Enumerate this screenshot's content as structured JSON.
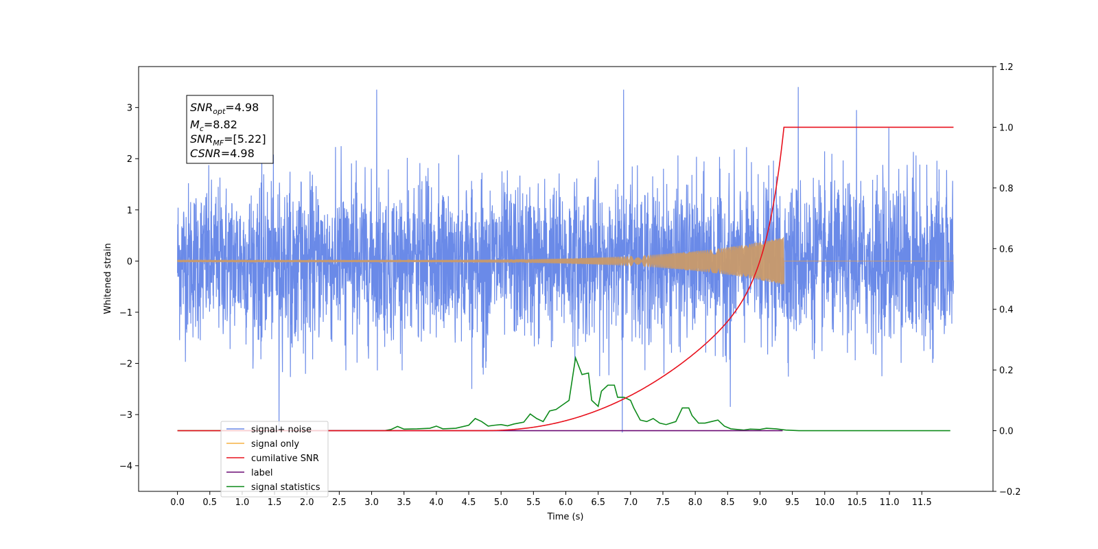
{
  "chart_data": {
    "type": "line",
    "xlabel": "Time (s)",
    "ylabel_left": "Whitened strain",
    "ylabel_right": "",
    "xlim": [
      -0.6,
      12.6
    ],
    "ylim_left": [
      -4.5,
      3.8
    ],
    "ylim_right": [
      -0.2,
      1.2
    ],
    "x_ticks": [
      "0.0",
      "0.5",
      "1.0",
      "1.5",
      "2.0",
      "2.5",
      "3.0",
      "3.5",
      "4.0",
      "4.5",
      "5.0",
      "5.5",
      "6.0",
      "6.5",
      "7.0",
      "7.5",
      "8.0",
      "8.5",
      "9.0",
      "9.5",
      "10.0",
      "10.5",
      "11.0",
      "11.5"
    ],
    "y_left_ticks": [
      "3",
      "2",
      "1",
      "0",
      "−1",
      "−2",
      "−3",
      "−4"
    ],
    "y_right_ticks": [
      "1.2",
      "1.0",
      "0.8",
      "0.6",
      "0.4",
      "0.2",
      "0.0",
      "−0.2"
    ],
    "grid": false,
    "legend_position": "lower-left",
    "annotation": {
      "snr_opt": {
        "base": "SNR",
        "sub": "opt",
        "value": "=4.98"
      },
      "mc": {
        "base": "M",
        "sub": "c",
        "value": "=8.82"
      },
      "snr_mf": {
        "base": "SNR",
        "sub": "MF",
        "value": "=[5.22]"
      },
      "csnr": {
        "base": "CSNR",
        "sub": "",
        "value": "=4.98"
      }
    },
    "series": [
      {
        "name": "signal+ noise",
        "axis": "left",
        "color": "#6a8ae8",
        "description_range": [
          -1.7,
          1.7
        ],
        "peaks": [
          [
            1.57,
            -3.3
          ],
          [
            3.08,
            3.35
          ],
          [
            6.9,
            3.35
          ],
          [
            9.6,
            3.4
          ],
          [
            6.88,
            -3.35
          ],
          [
            4.55,
            -2.5
          ],
          [
            8.55,
            -2.85
          ],
          [
            10.5,
            2.95
          ],
          [
            11.0,
            2.6
          ]
        ]
      },
      {
        "name": "signal only",
        "axis": "left",
        "color": "#f5b041",
        "x_end": 9.37,
        "amplitude_at_end": 0.45
      },
      {
        "name": "cumilative SNR",
        "axis": "right",
        "color": "#e8101c",
        "points": [
          [
            0.0,
            0.0
          ],
          [
            4.5,
            0.0
          ],
          [
            5.0,
            0.002
          ],
          [
            5.5,
            0.015
          ],
          [
            6.0,
            0.05
          ],
          [
            6.5,
            0.1
          ],
          [
            7.0,
            0.16
          ],
          [
            7.5,
            0.22
          ],
          [
            8.0,
            0.3
          ],
          [
            8.5,
            0.42
          ],
          [
            9.0,
            0.6
          ],
          [
            9.2,
            0.75
          ],
          [
            9.3,
            0.87
          ],
          [
            9.37,
            1.0
          ],
          [
            11.99,
            1.0
          ]
        ]
      },
      {
        "name": "label",
        "axis": "right",
        "color": "#6a0a74",
        "points": [
          [
            0.75,
            0.0
          ],
          [
            9.35,
            0.0
          ]
        ]
      },
      {
        "name": "signal statistics",
        "axis": "right",
        "color": "#0d8a1a",
        "points": [
          [
            0.0,
            0.0
          ],
          [
            3.2,
            0.0
          ],
          [
            3.3,
            0.004
          ],
          [
            3.4,
            0.014
          ],
          [
            3.5,
            0.005
          ],
          [
            3.7,
            0.006
          ],
          [
            3.9,
            0.008
          ],
          [
            4.0,
            0.015
          ],
          [
            4.1,
            0.006
          ],
          [
            4.3,
            0.008
          ],
          [
            4.5,
            0.018
          ],
          [
            4.6,
            0.04
          ],
          [
            4.7,
            0.03
          ],
          [
            4.8,
            0.015
          ],
          [
            4.9,
            0.018
          ],
          [
            5.0,
            0.02
          ],
          [
            5.1,
            0.016
          ],
          [
            5.2,
            0.022
          ],
          [
            5.35,
            0.028
          ],
          [
            5.45,
            0.055
          ],
          [
            5.55,
            0.04
          ],
          [
            5.65,
            0.03
          ],
          [
            5.75,
            0.065
          ],
          [
            5.85,
            0.07
          ],
          [
            5.95,
            0.085
          ],
          [
            6.05,
            0.1
          ],
          [
            6.15,
            0.24
          ],
          [
            6.25,
            0.185
          ],
          [
            6.35,
            0.19
          ],
          [
            6.4,
            0.1
          ],
          [
            6.5,
            0.08
          ],
          [
            6.55,
            0.13
          ],
          [
            6.65,
            0.15
          ],
          [
            6.75,
            0.15
          ],
          [
            6.8,
            0.11
          ],
          [
            6.9,
            0.11
          ],
          [
            7.0,
            0.1
          ],
          [
            7.05,
            0.075
          ],
          [
            7.15,
            0.035
          ],
          [
            7.25,
            0.03
          ],
          [
            7.35,
            0.04
          ],
          [
            7.45,
            0.025
          ],
          [
            7.55,
            0.02
          ],
          [
            7.7,
            0.03
          ],
          [
            7.8,
            0.075
          ],
          [
            7.9,
            0.075
          ],
          [
            7.95,
            0.05
          ],
          [
            8.05,
            0.025
          ],
          [
            8.15,
            0.025
          ],
          [
            8.25,
            0.03
          ],
          [
            8.35,
            0.035
          ],
          [
            8.45,
            0.015
          ],
          [
            8.55,
            0.006
          ],
          [
            8.75,
            0.002
          ],
          [
            8.85,
            0.005
          ],
          [
            9.0,
            0.004
          ],
          [
            9.1,
            0.008
          ],
          [
            9.25,
            0.006
          ],
          [
            9.4,
            0.002
          ],
          [
            9.6,
            0.0
          ],
          [
            11.94,
            0.0
          ]
        ]
      }
    ]
  }
}
